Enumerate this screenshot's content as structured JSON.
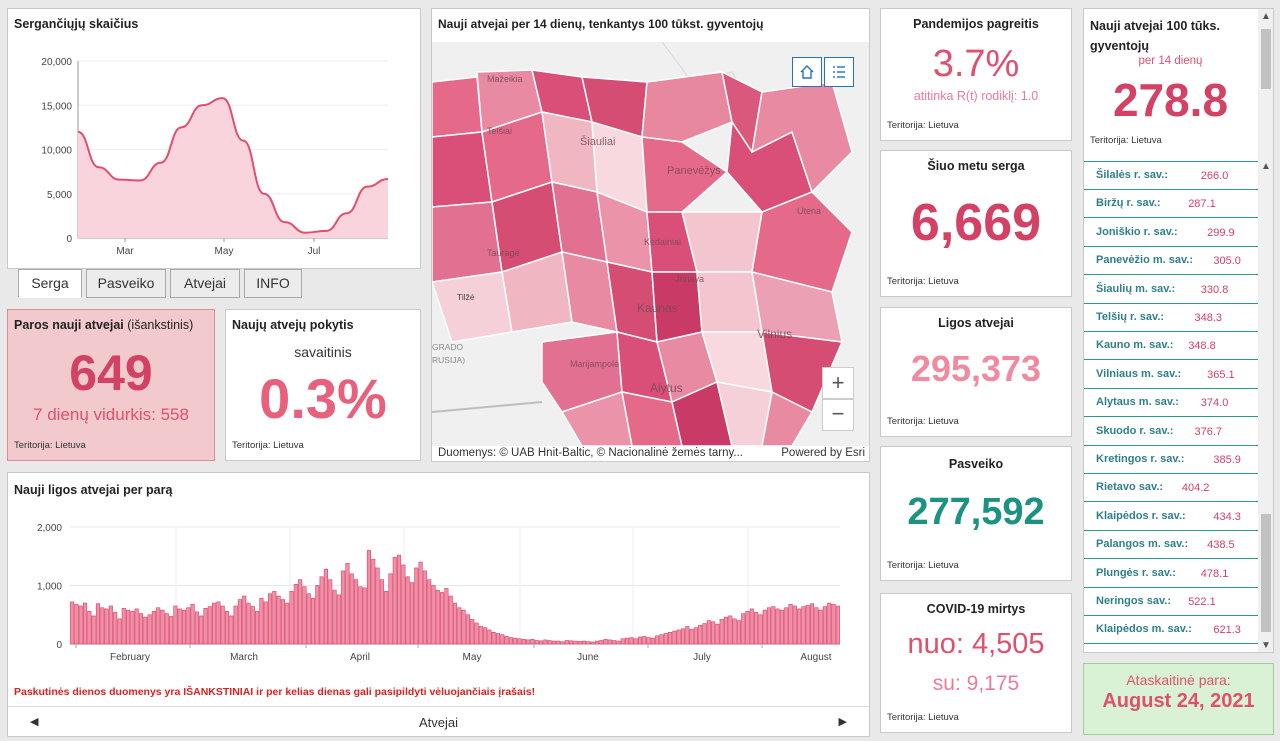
{
  "sick_chart": {
    "title": "Sergančiųjų skaičius",
    "y_ticks": [
      "20,000",
      "15,000",
      "10,000",
      "5,000",
      "0"
    ],
    "x_ticks": [
      "Mar",
      "May",
      "Jul"
    ]
  },
  "tabs": [
    {
      "label": "Serga",
      "active": true
    },
    {
      "label": "Pasveiko",
      "active": false
    },
    {
      "label": "Atvejai",
      "active": false
    },
    {
      "label": "INFO",
      "active": false
    }
  ],
  "daily_new": {
    "title": "Paros nauji atvejai",
    "title_suffix": "(išankstinis)",
    "value": "649",
    "avg": "7 dienų vidurkis: 558",
    "territory": "Teritorija: Lietuva"
  },
  "change": {
    "title": "Naujų atvejų pokytis",
    "sub": "savaitinis",
    "value": "0.3%",
    "territory": "Teritorija: Lietuva"
  },
  "map": {
    "title": "Nauji atvejai per 14 dienų, tenkantys 100 tūkst. gyventojų",
    "attribution": "Duomenys: © UAB Hnit-Baltic, © Nacionalinė žemės tarny...",
    "powered": "Powered by Esri",
    "labels": [
      "Mažeikia",
      "Telšiai",
      "Šiauliai",
      "Panevėžys",
      "Utena",
      "Kėdainiai",
      "Tauragė",
      "Jonava",
      "Kaunas",
      "Vilnius",
      "Marijampolė",
      "Alytus",
      "Tilžė",
      "GRADO",
      "RUSIJA)"
    ],
    "zoom_in": "+",
    "zoom_out": "−"
  },
  "acceleration": {
    "title": "Pandemijos pagreitis",
    "value": "3.7%",
    "sub": "atitinka R(t) rodiklį: 1.0",
    "territory": "Teritorija: Lietuva"
  },
  "currently_sick": {
    "title": "Šiuo metu serga",
    "value": "6,669",
    "territory": "Teritorija: Lietuva"
  },
  "cases": {
    "title": "Ligos atvejai",
    "value": "295,373",
    "territory": "Teritorija: Lietuva"
  },
  "recovered": {
    "title": "Pasveiko",
    "value": "277,592",
    "territory": "Teritorija: Lietuva"
  },
  "deaths": {
    "title": "COVID-19 mirtys",
    "value_from": "nuo: 4,505",
    "value_with": "su: 9,175",
    "territory": "Teritorija: Lietuva"
  },
  "ranking": {
    "title": "Nauji atvejai 100 tūks. gyventojų",
    "sub": "per 14 dienų",
    "value": "278.8",
    "territory": "Teritorija: Lietuva",
    "items": [
      {
        "name": "Šilalės r. sav.:",
        "value": "266.0"
      },
      {
        "name": "Biržų r. sav.:",
        "value": "287.1"
      },
      {
        "name": "Joniškio r. sav.:",
        "value": "299.9"
      },
      {
        "name": "Panevėžio m. sav.:",
        "value": "305.0"
      },
      {
        "name": "Šiaulių m. sav.:",
        "value": "330.8"
      },
      {
        "name": "Telšių r. sav.:",
        "value": "348.3"
      },
      {
        "name": "Kauno m. sav.:",
        "value": "348.8"
      },
      {
        "name": "Vilniaus m. sav.:",
        "value": "365.1"
      },
      {
        "name": "Alytaus m. sav.:",
        "value": "374.0"
      },
      {
        "name": "Skuodo r. sav.:",
        "value": "376.7"
      },
      {
        "name": "Kretingos r. sav.:",
        "value": "385.9"
      },
      {
        "name": "Rietavo sav.:",
        "value": "404.2"
      },
      {
        "name": "Klaipėdos r. sav.:",
        "value": "434.3"
      },
      {
        "name": "Palangos m. sav.:",
        "value": "438.5"
      },
      {
        "name": "Plungės r. sav.:",
        "value": "478.1"
      },
      {
        "name": "Neringos sav.:",
        "value": "522.1"
      },
      {
        "name": "Klaipėdos m. sav.:",
        "value": "621.3"
      }
    ]
  },
  "report_date": {
    "label": "Ataskaitinė para:",
    "value": "August 24, 2021"
  },
  "daily_chart": {
    "title": "Nauji ligos atvejai per parą",
    "y_ticks": [
      "2,000",
      "1,000",
      "0"
    ],
    "x_ticks": [
      "February",
      "March",
      "April",
      "May",
      "June",
      "July",
      "August"
    ],
    "warning": "Paskutinės dienos duomenys yra IŠANKSTINIAI ir per kelias dienas gali pasipildyti vėluojančiais įrašais!",
    "nav_label": "Atvejai"
  },
  "colors": {
    "accent_pink": "#e0506e",
    "accent_teal": "#1a9381",
    "date_bg": "#d9f2d6"
  },
  "chart_data": [
    {
      "type": "area",
      "title": "Sergančiųjų skaičius",
      "ylim": [
        0,
        20000
      ],
      "x": [
        "Feb 1",
        "Feb 15",
        "Mar 1",
        "Mar 15",
        "Apr 1",
        "Apr 15",
        "May 1",
        "May 10",
        "May 20",
        "Jun 1",
        "Jun 15",
        "Jul 1",
        "Jul 15",
        "Aug 1",
        "Aug 15",
        "Aug 24"
      ],
      "values": [
        12000,
        8000,
        6600,
        6500,
        8500,
        12500,
        15000,
        15800,
        11000,
        5000,
        1800,
        600,
        800,
        2800,
        5800,
        6669
      ]
    },
    {
      "type": "bar",
      "title": "Nauji ligos atvejai per parą",
      "ylim": [
        0,
        2000
      ],
      "x_range": [
        "Jan 25",
        "Aug 24"
      ],
      "values": [
        720,
        680,
        650,
        700,
        560,
        480,
        690,
        620,
        600,
        650,
        540,
        430,
        610,
        580,
        560,
        600,
        520,
        460,
        500,
        560,
        620,
        580,
        520,
        470,
        650,
        600,
        580,
        620,
        680,
        550,
        480,
        610,
        640,
        700,
        720,
        650,
        560,
        480,
        650,
        760,
        820,
        700,
        640,
        560,
        780,
        720,
        860,
        900,
        820,
        760,
        700,
        900,
        1020,
        1100,
        980,
        860,
        780,
        1000,
        1150,
        1280,
        1100,
        920,
        840,
        1250,
        1380,
        1200,
        1100,
        980,
        960,
        1600,
        1450,
        1300,
        1100,
        900,
        1200,
        1480,
        1520,
        1350,
        1150,
        1050,
        1300,
        1400,
        1250,
        1100,
        1000,
        920,
        880,
        950,
        820,
        700,
        620,
        580,
        500,
        420,
        360,
        300,
        280,
        240,
        200,
        180,
        160,
        130,
        110,
        100,
        90,
        80,
        70,
        80,
        60,
        55,
        70,
        60,
        50,
        50,
        40,
        60,
        55,
        50,
        45,
        50,
        40,
        35,
        50,
        60,
        80,
        70,
        60,
        50,
        90,
        100,
        110,
        90,
        120,
        130,
        110,
        100,
        140,
        160,
        180,
        200,
        220,
        240,
        260,
        300,
        250,
        280,
        320,
        350,
        400,
        380,
        340,
        420,
        460,
        480,
        430,
        400,
        520,
        560,
        600,
        540,
        500,
        580,
        620,
        640,
        600,
        580,
        620,
        680,
        650,
        600,
        640,
        660,
        690,
        620,
        580,
        640,
        700,
        680,
        649
      ]
    }
  ]
}
